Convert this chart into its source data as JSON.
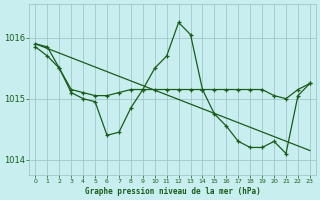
{
  "title": "Graphe pression niveau de la mer (hPa)",
  "bg_color": "#c8eef0",
  "grid_color": "#9bbfc0",
  "line_color": "#1a5c1a",
  "xlim": [
    -0.5,
    23.5
  ],
  "ylim": [
    1013.75,
    1016.55
  ],
  "yticks": [
    1014,
    1015,
    1016
  ],
  "xticks": [
    0,
    1,
    2,
    3,
    4,
    5,
    6,
    7,
    8,
    9,
    10,
    11,
    12,
    13,
    14,
    15,
    16,
    17,
    18,
    19,
    20,
    21,
    22,
    23
  ],
  "series_jagged": {
    "x": [
      0,
      1,
      2,
      3,
      4,
      5,
      6,
      7,
      8,
      9,
      10,
      11,
      12,
      13,
      14,
      15,
      16,
      17,
      18,
      19,
      20,
      21,
      22,
      23
    ],
    "y": [
      1015.9,
      1015.85,
      1015.5,
      1015.1,
      1015.0,
      1014.95,
      1014.4,
      1014.45,
      1014.85,
      1015.15,
      1015.5,
      1015.7,
      1016.25,
      1016.05,
      1015.15,
      1014.75,
      1014.55,
      1014.3,
      1014.2,
      1014.2,
      1014.3,
      1014.1,
      1015.05,
      1015.25
    ]
  },
  "series_flat": {
    "x": [
      0,
      1,
      2,
      3,
      4,
      5,
      6,
      7,
      8,
      9,
      10,
      11,
      12,
      13,
      14,
      15,
      16,
      17,
      18,
      19,
      20,
      21,
      22,
      23
    ],
    "y": [
      1015.85,
      1015.7,
      1015.5,
      1015.15,
      1015.1,
      1015.05,
      1015.05,
      1015.1,
      1015.15,
      1015.15,
      1015.15,
      1015.15,
      1015.15,
      1015.15,
      1015.15,
      1015.15,
      1015.15,
      1015.15,
      1015.15,
      1015.15,
      1015.05,
      1015.0,
      1015.15,
      1015.25
    ]
  },
  "series_trend": {
    "x": [
      0,
      23
    ],
    "y": [
      1015.9,
      1014.15
    ]
  }
}
